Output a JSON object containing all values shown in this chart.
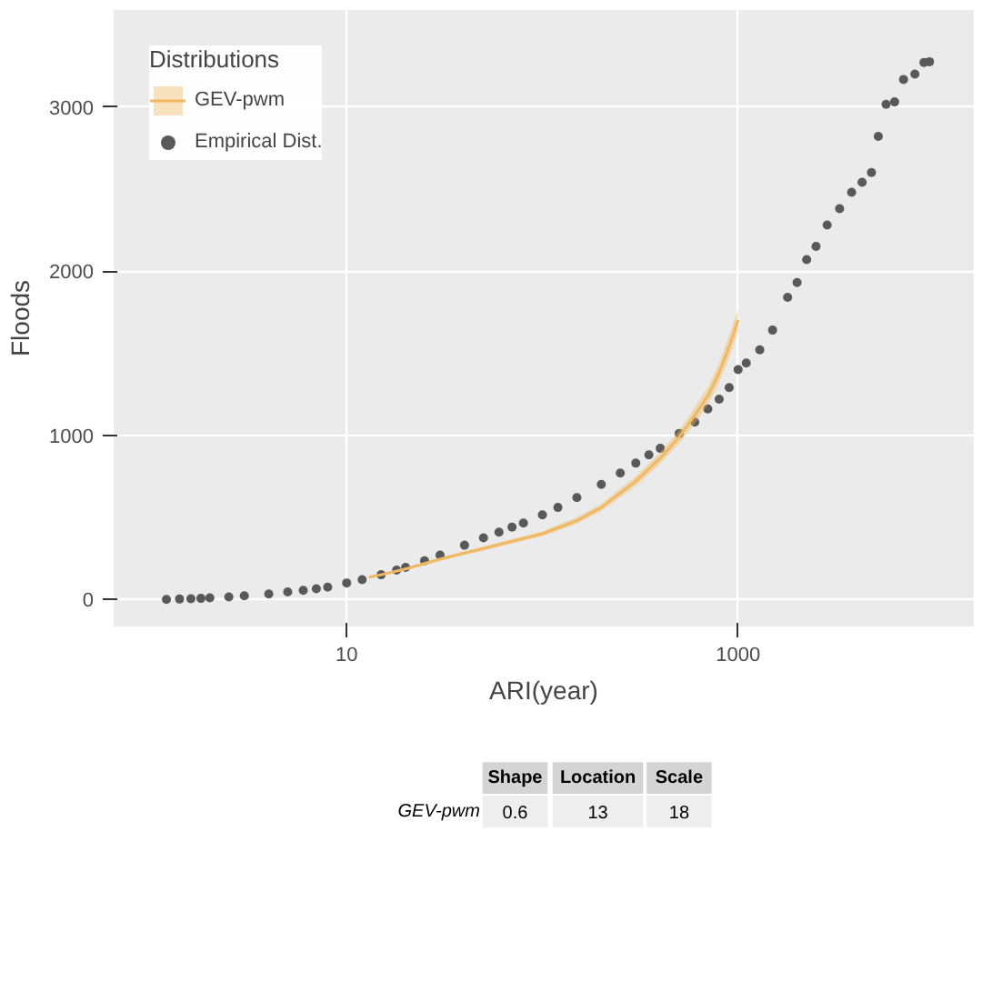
{
  "chart_data": {
    "type": "scatter",
    "xlabel": "ARI(year)",
    "ylabel": "Floods",
    "legend_title": "Distributions",
    "log": "x",
    "grid": true,
    "legend": "top left",
    "xlim": [
      0.645,
      16000
    ],
    "ylim": [
      -165,
      3590
    ],
    "xticks": [
      10,
      1000
    ],
    "yticks": [
      0,
      1000,
      2000,
      3000
    ],
    "series": [
      {
        "name": "Empirical Dist.",
        "marker": "circle",
        "color": "#595959",
        "x": [
          1.2,
          1.4,
          1.6,
          1.8,
          2,
          2.5,
          3,
          4,
          5,
          6,
          7,
          8,
          10,
          12,
          15,
          18,
          20,
          25,
          30,
          40,
          50,
          60,
          70,
          80,
          100,
          120,
          150,
          200,
          250,
          300,
          350,
          400,
          500,
          600,
          700,
          800,
          900,
          1000,
          1100,
          1290,
          1500,
          1790,
          2000,
          2240,
          2500,
          2850,
          3300,
          3800,
          4300,
          4800,
          5200,
          5700,
          6300,
          7000,
          8000,
          8900,
          9500
        ],
        "values": [
          0,
          2,
          4,
          6,
          9,
          15,
          22,
          33,
          45,
          55,
          65,
          75,
          100,
          120,
          150,
          178,
          195,
          235,
          270,
          330,
          375,
          410,
          440,
          465,
          515,
          560,
          620,
          700,
          770,
          830,
          880,
          920,
          1010,
          1080,
          1160,
          1220,
          1290,
          1400,
          1440,
          1520,
          1640,
          1840,
          1930,
          2070,
          2150,
          2280,
          2380,
          2480,
          2540,
          2600,
          2820,
          3015,
          3030,
          3167,
          3200,
          3270,
          3275
        ]
      },
      {
        "name": "GEV-pwm",
        "type": "line",
        "color": "#f0b860",
        "x": [
          13,
          15,
          20,
          30,
          50,
          100,
          150,
          200,
          300,
          400,
          500,
          600,
          700,
          800,
          900,
          1000
        ],
        "values": [
          135,
          150,
          185,
          245,
          310,
          400,
          480,
          560,
          720,
          860,
          990,
          1120,
          1240,
          1380,
          1540,
          1700
        ],
        "lower": [
          130,
          145,
          178,
          235,
          298,
          385,
          460,
          538,
          690,
          825,
          950,
          1070,
          1185,
          1320,
          1470,
          1630
        ],
        "upper": [
          140,
          155,
          192,
          255,
          322,
          415,
          500,
          582,
          750,
          895,
          1030,
          1170,
          1295,
          1440,
          1610,
          1770
        ]
      }
    ],
    "annotations": [
      "Shape",
      "Location",
      "Scale",
      "GEV-pwm",
      "0.6",
      "13",
      "18"
    ]
  }
}
